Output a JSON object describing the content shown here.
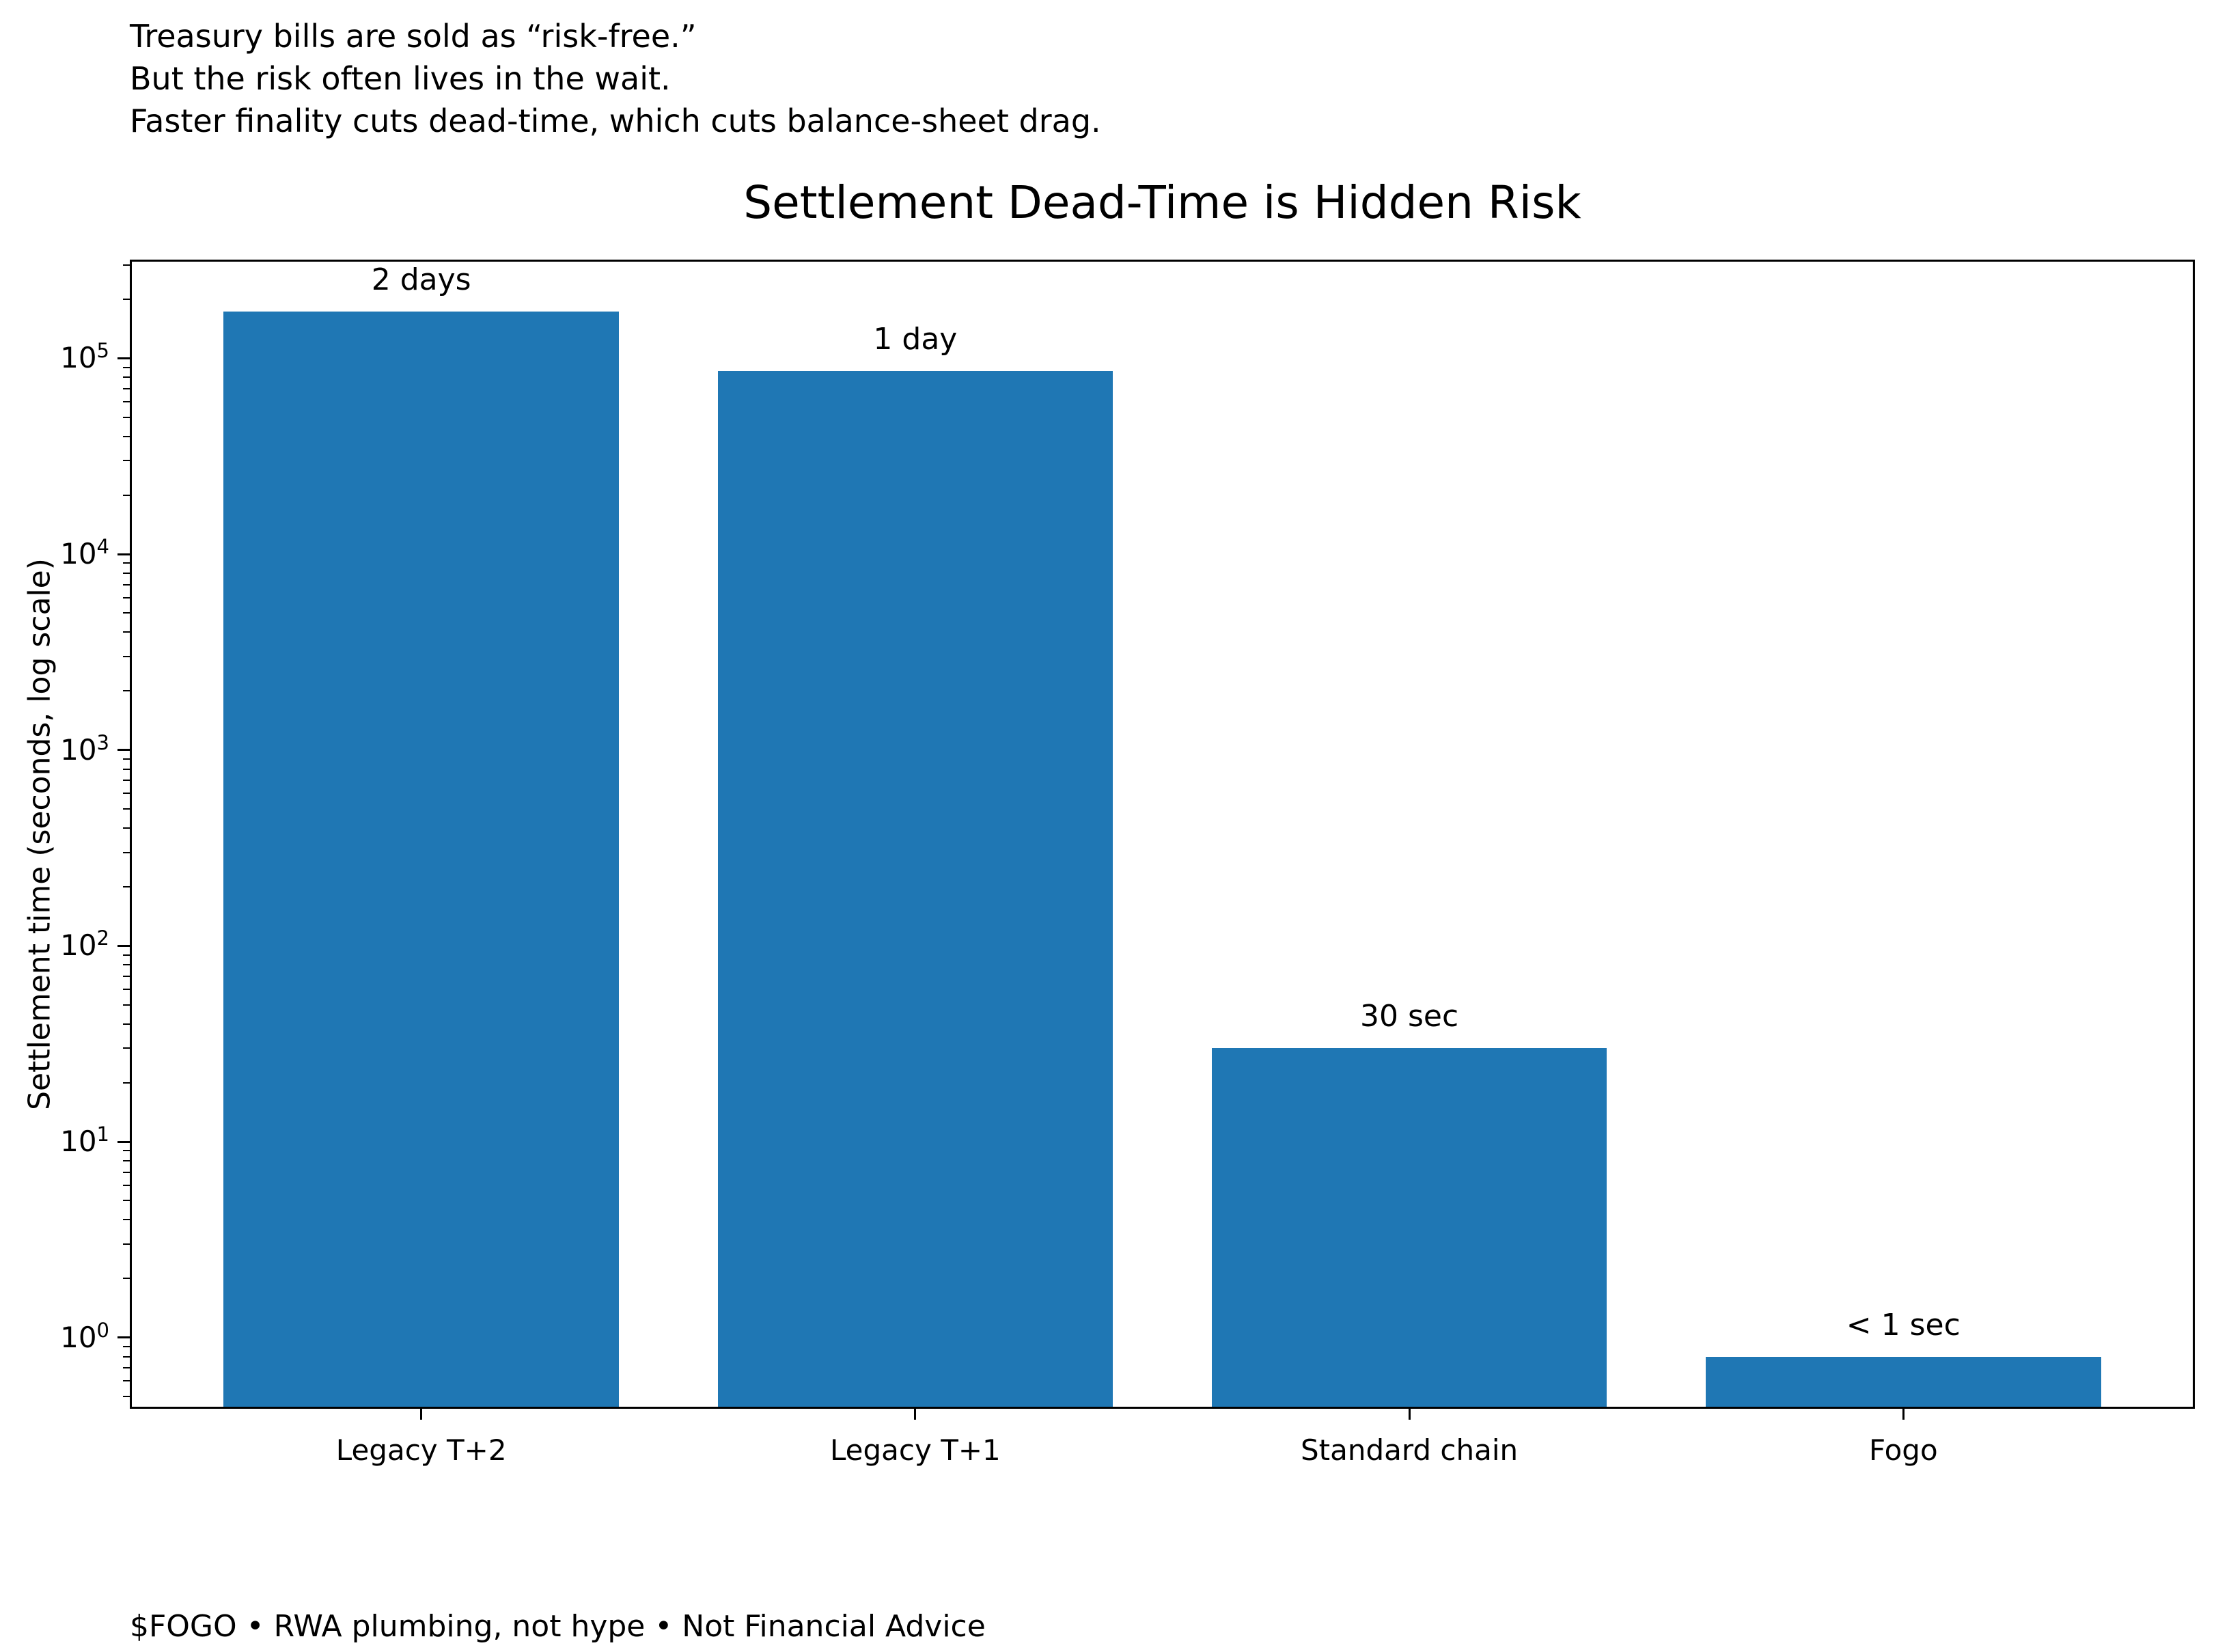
{
  "annotation": {
    "lines": [
      "Treasury bills are sold as “risk-free.”",
      "But the risk often lives in the wait.",
      "Faster finality cuts dead-time, which cuts balance-sheet drag."
    ]
  },
  "footer": "$FOGO • RWA plumbing, not hype • Not Financial Advice",
  "chart_data": {
    "type": "bar",
    "title": "Settlement Dead-Time is Hidden Risk",
    "categories": [
      "Legacy T+2",
      "Legacy T+1",
      "Standard chain",
      "Fogo"
    ],
    "values": [
      172800,
      86400,
      30,
      0.8
    ],
    "bar_labels": [
      "2 days",
      "1 day",
      "30 sec",
      "< 1 sec"
    ],
    "xlabel": "",
    "ylabel": "Settlement time (seconds, log scale)",
    "yscale": "log",
    "ylim": [
      0.433,
      319000
    ],
    "yticks": [
      1,
      10,
      100,
      1000,
      10000,
      100000
    ],
    "ytick_labels": [
      "10⁰",
      "10¹",
      "10²",
      "10³",
      "10⁴",
      "10⁵"
    ],
    "bar_color": "#1f77b4",
    "grid": false,
    "legend": false,
    "bar_width": 0.8
  }
}
